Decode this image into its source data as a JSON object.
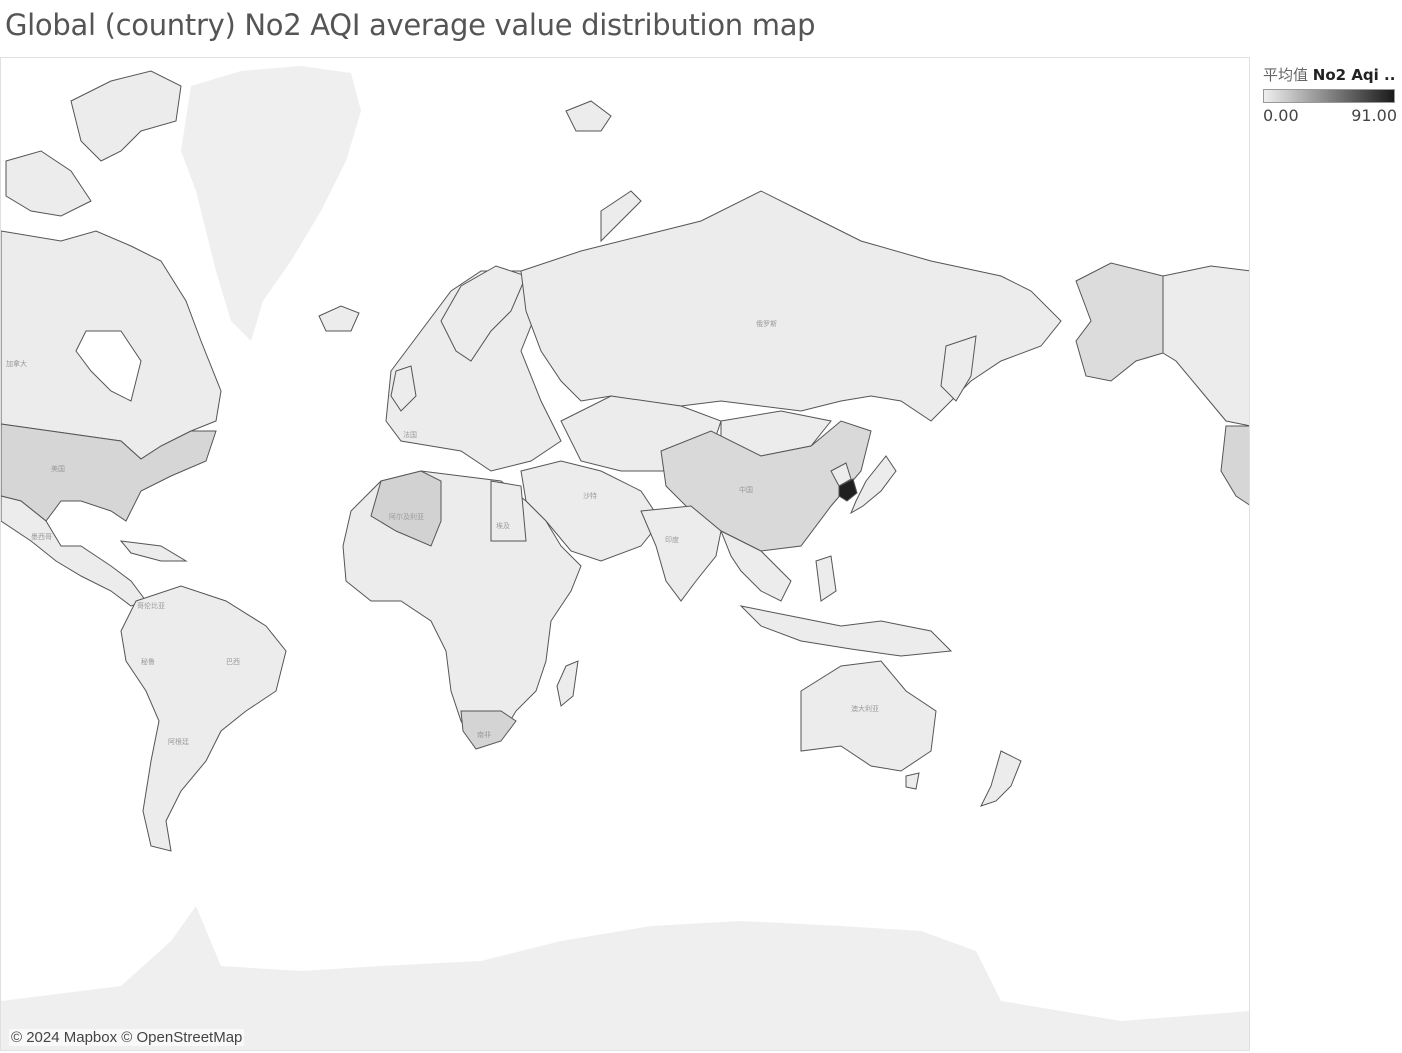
{
  "title": "Global (country) No2 AQI average value distribution map",
  "legend": {
    "aggregation": "平均值",
    "field": "No2 Aqi ..",
    "min_label": "0.00",
    "max_label": "91.00",
    "min_color": "#efefef",
    "max_color": "#1a1a1a"
  },
  "attribution": "© 2024 Mapbox © OpenStreetMap",
  "map_labels": {
    "russia": "俄罗斯",
    "usa": "美国",
    "canada": "加拿大",
    "china": "中国",
    "india": "印度",
    "brazil": "巴西",
    "australia": "澳大利亚",
    "algeria": "阿尔及利亚",
    "egypt": "埃及",
    "saudi": "沙特",
    "argentina": "阿根廷",
    "mexico": "墨西哥",
    "colombia": "哥伦比亚",
    "peru": "秘鲁",
    "south_africa": "南非",
    "france": "法国"
  },
  "chart_data": {
    "type": "map",
    "measure": "No2 AQI (average)",
    "color_range": [
      0,
      91
    ],
    "highlighted_values": [
      {
        "country": "South Korea",
        "shade": "darkest"
      },
      {
        "country": "Algeria",
        "shade": "medium"
      },
      {
        "country": "United States",
        "shade": "medium"
      },
      {
        "country": "China",
        "shade": "medium"
      },
      {
        "country": "South Africa",
        "shade": "medium"
      }
    ]
  }
}
